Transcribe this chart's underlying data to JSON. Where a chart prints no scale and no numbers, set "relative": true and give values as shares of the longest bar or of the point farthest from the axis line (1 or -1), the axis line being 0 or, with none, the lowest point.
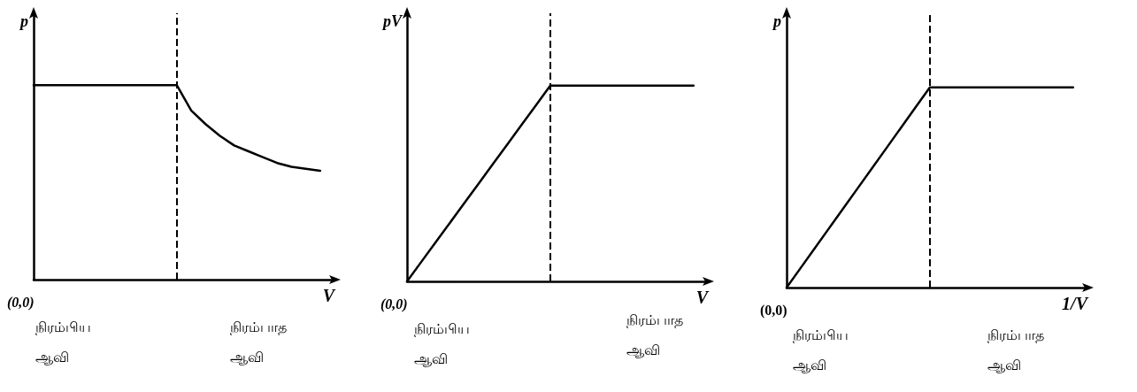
{
  "chart_data": [
    {
      "type": "line",
      "xlabel": "V",
      "ylabel": "p",
      "relative": true,
      "grid": false,
      "marker": "none",
      "line_style": "solid",
      "categories": [
        null,
        null,
        null,
        null,
        null,
        null,
        null,
        null,
        null,
        null,
        null,
        null,
        null,
        null,
        null,
        null,
        null,
        null,
        null,
        null,
        null,
        null
      ],
      "series": [
        {
          "color": "#000000",
          "values": [
            1,
            1,
            1,
            1,
            1,
            1,
            1,
            1,
            1,
            1,
            1,
            0.87,
            0.8,
            0.74,
            0.69,
            0.66,
            0.63,
            0.6,
            0.58,
            0.57,
            0.56,
            null
          ]
        }
      ],
      "ref_lines": [
        {
          "axis": "x",
          "color": "#000000",
          "line_style": "dashed"
        }
      ],
      "annotations": [
        "(0,0)",
        "நிரம்பிய ஆவி",
        "நிரம்பாத ஆவி"
      ]
    },
    {
      "type": "line",
      "xlabel": "V",
      "ylabel": "pV",
      "relative": true,
      "grid": false,
      "marker": "none",
      "line_style": "solid",
      "categories": [
        null,
        null,
        null,
        null,
        null,
        null,
        null,
        null,
        null,
        null,
        null,
        null,
        null,
        null,
        null,
        null,
        null,
        null,
        null,
        null,
        null,
        null
      ],
      "series": [
        {
          "color": "#000000",
          "values": [
            0,
            0.1,
            0.2,
            0.3,
            0.4,
            0.5,
            0.6,
            0.7,
            0.8,
            0.9,
            1,
            1,
            1,
            1,
            1,
            1,
            1,
            1,
            1,
            1,
            1,
            null
          ]
        }
      ],
      "ref_lines": [
        {
          "axis": "x",
          "color": "#000000",
          "line_style": "dashed"
        }
      ],
      "annotations": [
        "(0,0)",
        "நிரம்பிய ஆவி",
        "நிரம்பாத ஆவி"
      ]
    },
    {
      "type": "line",
      "xlabel": "1/V",
      "ylabel": "p",
      "relative": true,
      "grid": false,
      "marker": "none",
      "line_style": "solid",
      "categories": [
        null,
        null,
        null,
        null,
        null,
        null,
        null,
        null,
        null,
        null,
        null,
        null,
        null,
        null,
        null,
        null,
        null,
        null,
        null,
        null,
        null,
        null
      ],
      "series": [
        {
          "color": "#000000",
          "values": [
            0,
            0.1,
            0.2,
            0.3,
            0.4,
            0.5,
            0.6,
            0.7,
            0.8,
            0.9,
            1,
            1,
            1,
            1,
            1,
            1,
            1,
            1,
            1,
            1,
            1,
            null
          ]
        }
      ],
      "ref_lines": [
        {
          "axis": "x",
          "color": "#000000",
          "line_style": "dashed"
        }
      ],
      "annotations": [
        "(0,0)",
        "நிரம்பிய ஆவி",
        "நிரம்பாத ஆவி"
      ]
    }
  ]
}
